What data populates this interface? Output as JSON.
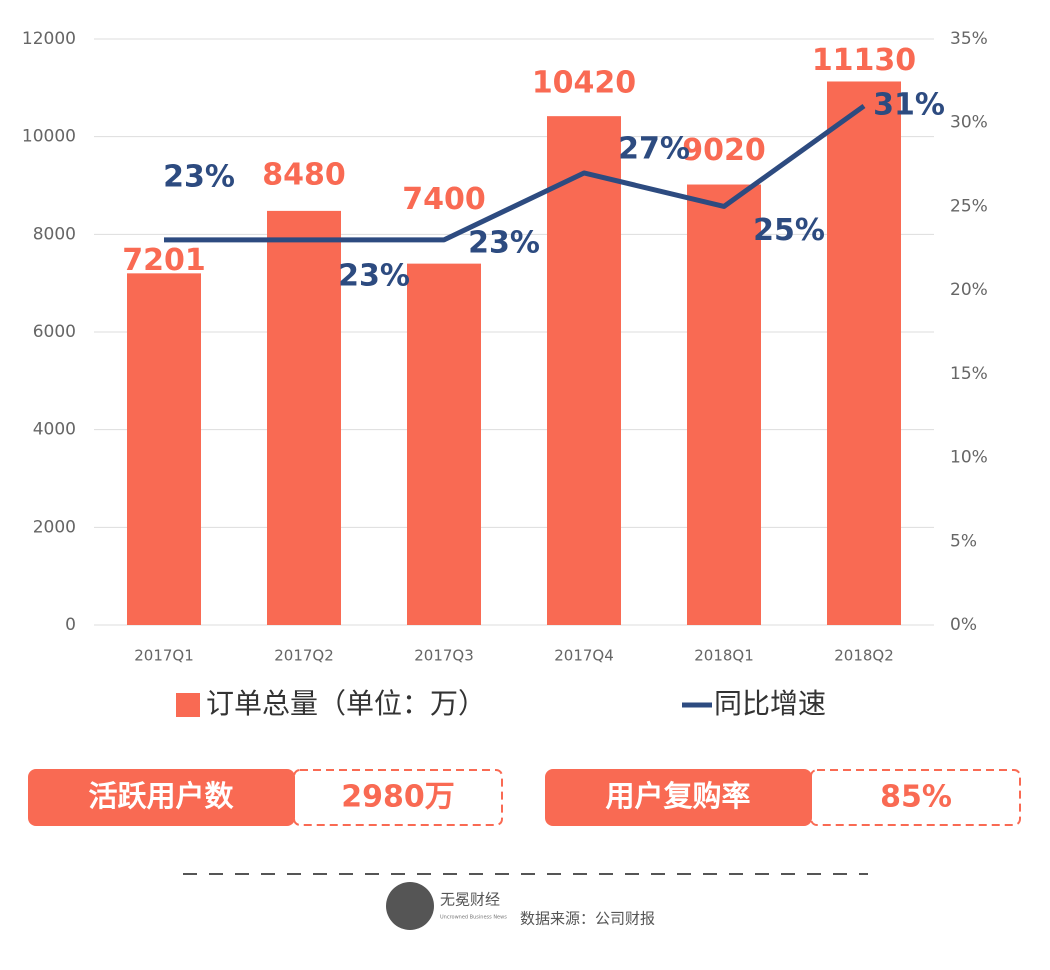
{
  "chart_data": {
    "type": "bar",
    "categories": [
      "2017Q1",
      "2017Q2",
      "2017Q3",
      "2017Q4",
      "2018Q1",
      "2018Q2"
    ],
    "series": [
      {
        "name": "订单总量（单位：万）",
        "color": "#f96a53",
        "values": [
          7201,
          8480,
          7400,
          10420,
          9020,
          11130
        ]
      },
      {
        "name": "同比增速",
        "color": "#2d4b80",
        "type": "line",
        "axis": "y2",
        "values": [
          23,
          23,
          23,
          27,
          25,
          31
        ],
        "value_labels": [
          "23%",
          "23%",
          "23%",
          "27%",
          "25%",
          "31%"
        ]
      }
    ],
    "ylim": [
      0,
      12000
    ],
    "yticks": [
      0,
      2000,
      4000,
      6000,
      8000,
      10000,
      12000
    ],
    "y2lim": [
      0,
      35
    ],
    "y2ticks": [
      {
        "value": 0,
        "label": "0%"
      },
      {
        "value": 5,
        "label": "5%"
      },
      {
        "value": 10,
        "label": "10%"
      },
      {
        "value": 15,
        "label": "15%"
      },
      {
        "value": 20,
        "label": "20%"
      },
      {
        "value": 25,
        "label": "25%"
      },
      {
        "value": 30,
        "label": "30%"
      },
      {
        "value": 35,
        "label": "35%"
      }
    ],
    "grid": true
  },
  "stats": [
    {
      "label": "活跃用户数",
      "value": "2980万"
    },
    {
      "label": "用户复购率",
      "value": "85%"
    }
  ],
  "footer": {
    "brand": "无冕财经",
    "brand_en": "Uncrowned Business News",
    "source": "数据来源：公司财报"
  }
}
